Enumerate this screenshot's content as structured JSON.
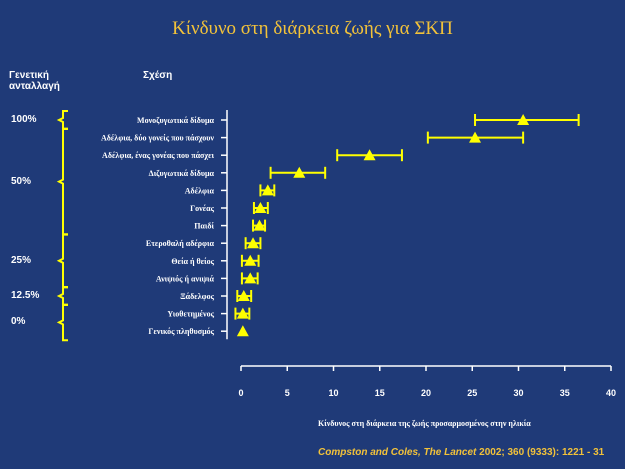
{
  "title": "Κίνδυνο στη διάρκεια ζωής για ΣΚΠ",
  "headers": {
    "genetic_share": "Γενετική ανταλλαγή",
    "relation": "Σχέση"
  },
  "percent_groups": [
    {
      "label": "100%",
      "from": 0,
      "to": 0
    },
    {
      "label": "50%",
      "from": 1,
      "to": 6
    },
    {
      "label": "25%",
      "from": 7,
      "to": 9
    },
    {
      "label": "12.5%",
      "from": 10,
      "to": 10
    },
    {
      "label": "0%",
      "from": 11,
      "to": 12
    }
  ],
  "colors": {
    "background": "#1f3a78",
    "accent": "#ffff00",
    "title": "#f2c23a",
    "axis": "#ffffff"
  },
  "chart_data": {
    "type": "scatter",
    "title": "Κίνδυνο στη διάρκεια ζωής για ΣΚΠ",
    "xlabel": "Κίνδυνος στη διάρκεια της ζωής προσαρμοσμένος στην ηλικία",
    "ylabel": "Σχέση",
    "xlim": [
      0,
      40
    ],
    "xticks": [
      0,
      5,
      10,
      15,
      20,
      25,
      30,
      35,
      40
    ],
    "categories": [
      "Μονοζυγωτικά δίδυμα",
      "Αδέλφια, δύο γονείς που πάσχουν",
      "Αδέλφια, ένας γονέας που πάσχει",
      "Διζυγωτικά δίδυμα",
      "Αδέλφια",
      "Γονέας",
      "Παιδί",
      "Ετεροθαλή αδέρφια",
      "Θεία ή θείος",
      "Ανιψιός ή ανιψιά",
      "Ξάδελφος",
      "Υιοθετημένος",
      "Γενικός πληθυσμός"
    ],
    "values": [
      30.5,
      25.3,
      13.9,
      6.3,
      2.9,
      2.1,
      2.0,
      1.3,
      1.0,
      1.0,
      0.3,
      0.2,
      0.2
    ],
    "ci_low": [
      25.3,
      20.2,
      10.4,
      3.2,
      2.1,
      1.4,
      1.3,
      0.5,
      0.1,
      0.1,
      -0.4,
      -0.6,
      null
    ],
    "ci_high": [
      36.5,
      30.5,
      17.4,
      9.1,
      3.6,
      2.9,
      2.6,
      2.1,
      1.9,
      1.8,
      1.1,
      0.9,
      null
    ],
    "grid": false,
    "legend": "none"
  },
  "x_axis_label": "Κίνδυνος στη διάρκεια της ζωής προσαρμοσμένος στην ηλικία",
  "citation": {
    "authors": "Compston and Coles, The Lancet",
    "details": "2002; 360 (9333): 1221 - 31"
  }
}
